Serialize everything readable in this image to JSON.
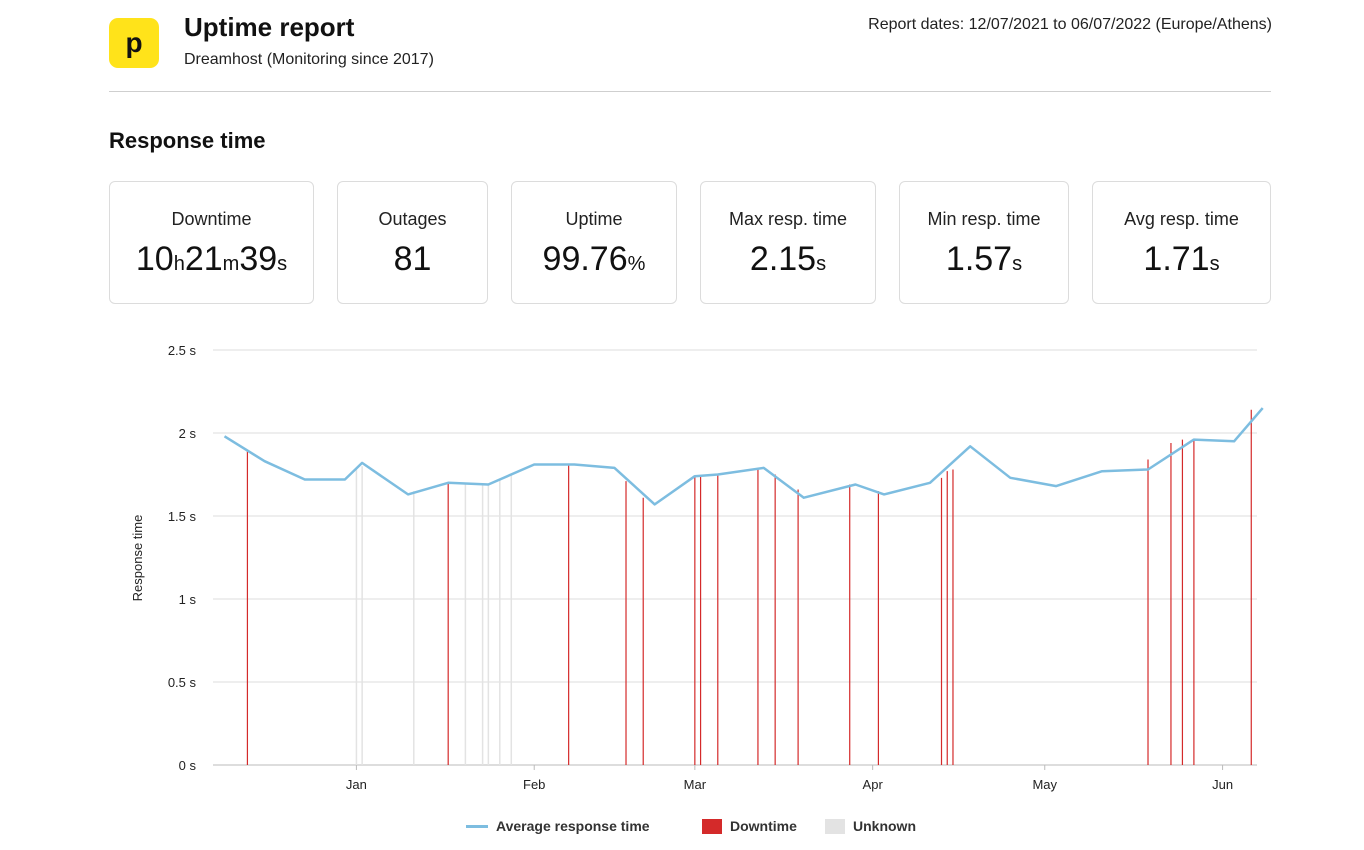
{
  "header": {
    "logo_letter": "p",
    "title": "Uptime report",
    "subtitle": "Dreamhost (Monitoring since 2017)",
    "dates": "Report dates: 12/07/2021 to 06/07/2022 (Europe/Athens)"
  },
  "section_title": "Response time",
  "stats": {
    "downtime": {
      "label": "Downtime",
      "h": "10",
      "h_unit": "h",
      "m": "21",
      "m_unit": "m",
      "s": "39",
      "s_unit": "s"
    },
    "outages": {
      "label": "Outages",
      "value": "81"
    },
    "uptime": {
      "label": "Uptime",
      "value": "99.76",
      "unit": "%"
    },
    "max_resp": {
      "label": "Max resp. time",
      "value": "2.15",
      "unit": "s"
    },
    "min_resp": {
      "label": "Min resp. time",
      "value": "1.57",
      "unit": "s"
    },
    "avg_resp": {
      "label": "Avg resp. time",
      "value": "1.71",
      "unit": "s"
    }
  },
  "colors": {
    "line": "#7dbde0",
    "downtime": "#d42a2a",
    "unknown": "#e3e3e3",
    "grid": "#dddddd"
  },
  "chart_data": {
    "type": "line",
    "ylabel": "Response time",
    "ylim": [
      0,
      2.5
    ],
    "y_ticks": [
      "0 s",
      "0.5 s",
      "1 s",
      "1.5 s",
      "2 s",
      "2.5 s"
    ],
    "x_range": [
      "2021-12-07",
      "2022-06-07"
    ],
    "x_ticks": [
      {
        "label": "Jan",
        "date": "2022-01-01"
      },
      {
        "label": "Feb",
        "date": "2022-02-01"
      },
      {
        "label": "Mar",
        "date": "2022-03-01"
      },
      {
        "label": "Apr",
        "date": "2022-04-01"
      },
      {
        "label": "May",
        "date": "2022-05-01"
      },
      {
        "label": "Jun",
        "date": "2022-06-01"
      }
    ],
    "grid": true,
    "legend_position": "bottom",
    "series": [
      {
        "name": "Average response time",
        "points": [
          [
            "2021-12-09",
            1.98
          ],
          [
            "2021-12-16",
            1.83
          ],
          [
            "2021-12-23",
            1.72
          ],
          [
            "2021-12-30",
            1.72
          ],
          [
            "2022-01-02",
            1.82
          ],
          [
            "2022-01-10",
            1.63
          ],
          [
            "2022-01-17",
            1.7
          ],
          [
            "2022-01-24",
            1.69
          ],
          [
            "2022-02-01",
            1.81
          ],
          [
            "2022-02-08",
            1.81
          ],
          [
            "2022-02-15",
            1.79
          ],
          [
            "2022-02-22",
            1.57
          ],
          [
            "2022-03-01",
            1.74
          ],
          [
            "2022-03-05",
            1.75
          ],
          [
            "2022-03-13",
            1.79
          ],
          [
            "2022-03-20",
            1.61
          ],
          [
            "2022-03-29",
            1.69
          ],
          [
            "2022-04-03",
            1.63
          ],
          [
            "2022-04-11",
            1.7
          ],
          [
            "2022-04-18",
            1.92
          ],
          [
            "2022-04-25",
            1.73
          ],
          [
            "2022-05-03",
            1.68
          ],
          [
            "2022-05-11",
            1.77
          ],
          [
            "2022-05-19",
            1.78
          ],
          [
            "2022-05-27",
            1.96
          ],
          [
            "2022-06-03",
            1.95
          ],
          [
            "2022-06-08",
            2.15
          ]
        ]
      }
    ],
    "downtime": [
      [
        "2021-12-13",
        1.89
      ],
      [
        "2022-01-17",
        1.7
      ],
      [
        "2022-02-07",
        1.81
      ],
      [
        "2022-02-17",
        1.71
      ],
      [
        "2022-02-20",
        1.61
      ],
      [
        "2022-03-01",
        1.74
      ],
      [
        "2022-03-02",
        1.74
      ],
      [
        "2022-03-05",
        1.75
      ],
      [
        "2022-03-12",
        1.78
      ],
      [
        "2022-03-15",
        1.75
      ],
      [
        "2022-03-19",
        1.66
      ],
      [
        "2022-03-28",
        1.69
      ],
      [
        "2022-04-02",
        1.65
      ],
      [
        "2022-04-13",
        1.73
      ],
      [
        "2022-04-14",
        1.77
      ],
      [
        "2022-04-15",
        1.78
      ],
      [
        "2022-05-19",
        1.84
      ],
      [
        "2022-05-23",
        1.94
      ],
      [
        "2022-05-25",
        1.96
      ],
      [
        "2022-05-27",
        1.96
      ],
      [
        "2022-06-06",
        2.14
      ]
    ],
    "unknown": [
      [
        "2022-01-01",
        1.78
      ],
      [
        "2022-01-02",
        1.8
      ],
      [
        "2022-01-11",
        1.65
      ],
      [
        "2022-01-20",
        1.7
      ],
      [
        "2022-01-23",
        1.69
      ],
      [
        "2022-01-24",
        1.69
      ],
      [
        "2022-01-26",
        1.72
      ],
      [
        "2022-01-28",
        1.75
      ]
    ],
    "legend": [
      "Average response time",
      "Downtime",
      "Unknown"
    ]
  }
}
